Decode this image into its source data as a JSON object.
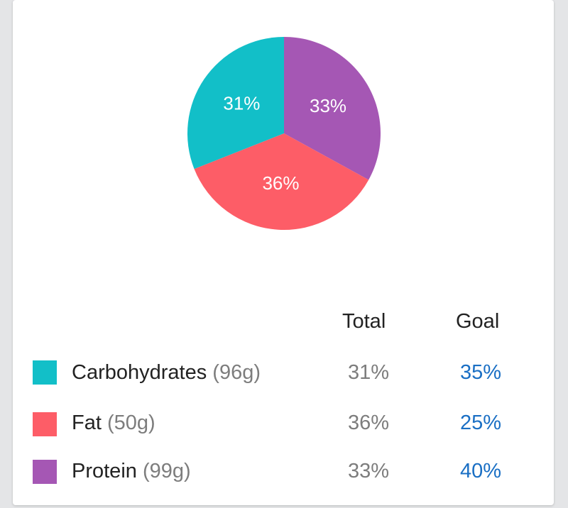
{
  "chart_data": {
    "type": "pie",
    "slices": [
      {
        "name": "Carbohydrates",
        "value": 31,
        "label": "31%",
        "color": "#12bfc8"
      },
      {
        "name": "Fat",
        "value": 36,
        "label": "36%",
        "color": "#fd5d67"
      },
      {
        "name": "Protein",
        "value": 33,
        "label": "33%",
        "color": "#a557b4"
      }
    ]
  },
  "table": {
    "header_total": "Total",
    "header_goal": "Goal",
    "rows": [
      {
        "name": "Carbohydrates",
        "grams": "(96g)",
        "total": "31%",
        "goal": "35%",
        "color": "#12bfc8"
      },
      {
        "name": "Fat",
        "grams": "(50g)",
        "total": "36%",
        "goal": "25%",
        "color": "#fd5d67"
      },
      {
        "name": "Protein",
        "grams": "(99g)",
        "total": "33%",
        "goal": "40%",
        "color": "#a557b4"
      }
    ]
  }
}
